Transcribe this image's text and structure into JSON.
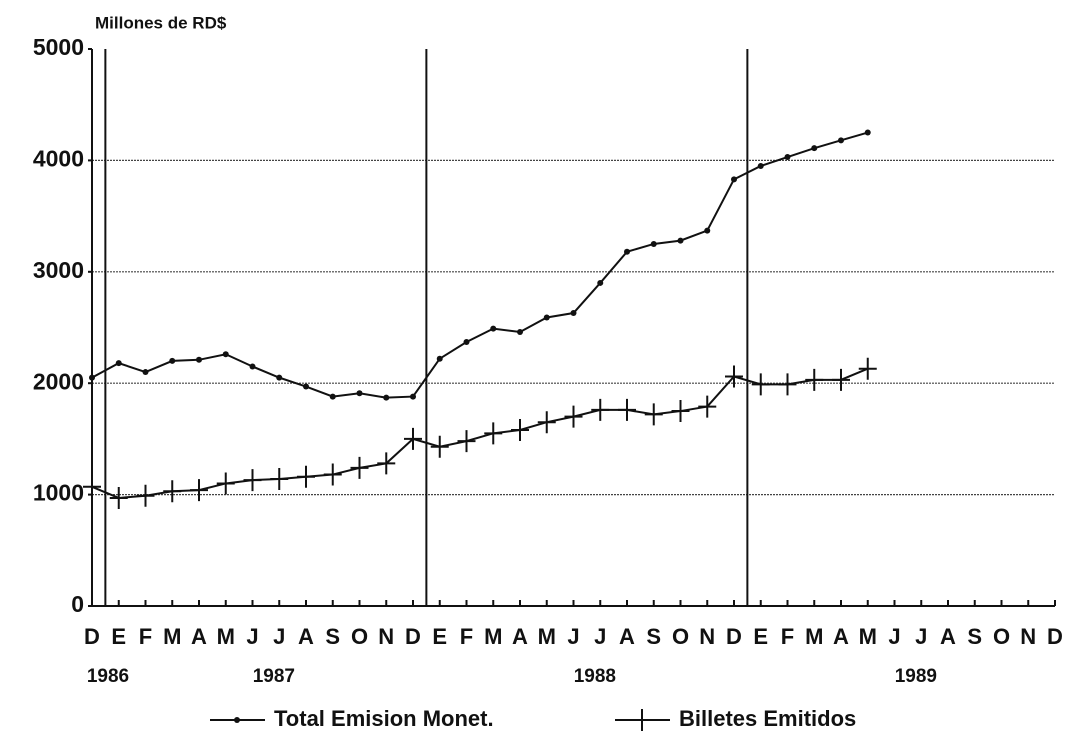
{
  "chart_data": {
    "type": "line",
    "y_axis_title": "Millones de RD$",
    "categories": [
      "D",
      "E",
      "F",
      "M",
      "A",
      "M",
      "J",
      "J",
      "A",
      "S",
      "O",
      "N",
      "D",
      "E",
      "F",
      "M",
      "A",
      "M",
      "J",
      "J",
      "A",
      "S",
      "O",
      "N",
      "D",
      "E",
      "F",
      "M",
      "A",
      "M",
      "J",
      "J",
      "A",
      "S",
      "O",
      "N",
      "D"
    ],
    "year_labels": [
      "1986",
      "1987",
      "1988",
      "1989"
    ],
    "series": [
      {
        "name": "Total Emision Monet.",
        "color": "#111111",
        "marker": "dot",
        "values": [
          2050,
          2180,
          2100,
          2200,
          2210,
          2260,
          2150,
          2050,
          1970,
          1880,
          1910,
          1870,
          1880,
          2220,
          2370,
          2490,
          2460,
          2590,
          2630,
          2900,
          3180,
          3250,
          3280,
          3370,
          3830,
          3950,
          4030,
          4110,
          4180,
          4250,
          null,
          null,
          null,
          null,
          null,
          null,
          null
        ]
      },
      {
        "name": "Billetes Emitidos",
        "color": "#111111",
        "marker": "cross",
        "values": [
          1070,
          970,
          990,
          1030,
          1040,
          1100,
          1130,
          1140,
          1160,
          1180,
          1240,
          1280,
          1500,
          1430,
          1480,
          1550,
          1580,
          1650,
          1700,
          1760,
          1760,
          1720,
          1750,
          1790,
          2060,
          1990,
          1990,
          2030,
          2030,
          2130,
          null,
          null,
          null,
          null,
          null,
          null,
          null
        ]
      }
    ],
    "ylim": [
      0,
      5000
    ],
    "yticks": [
      0,
      1000,
      2000,
      3000,
      4000,
      5000
    ],
    "grid": true
  }
}
